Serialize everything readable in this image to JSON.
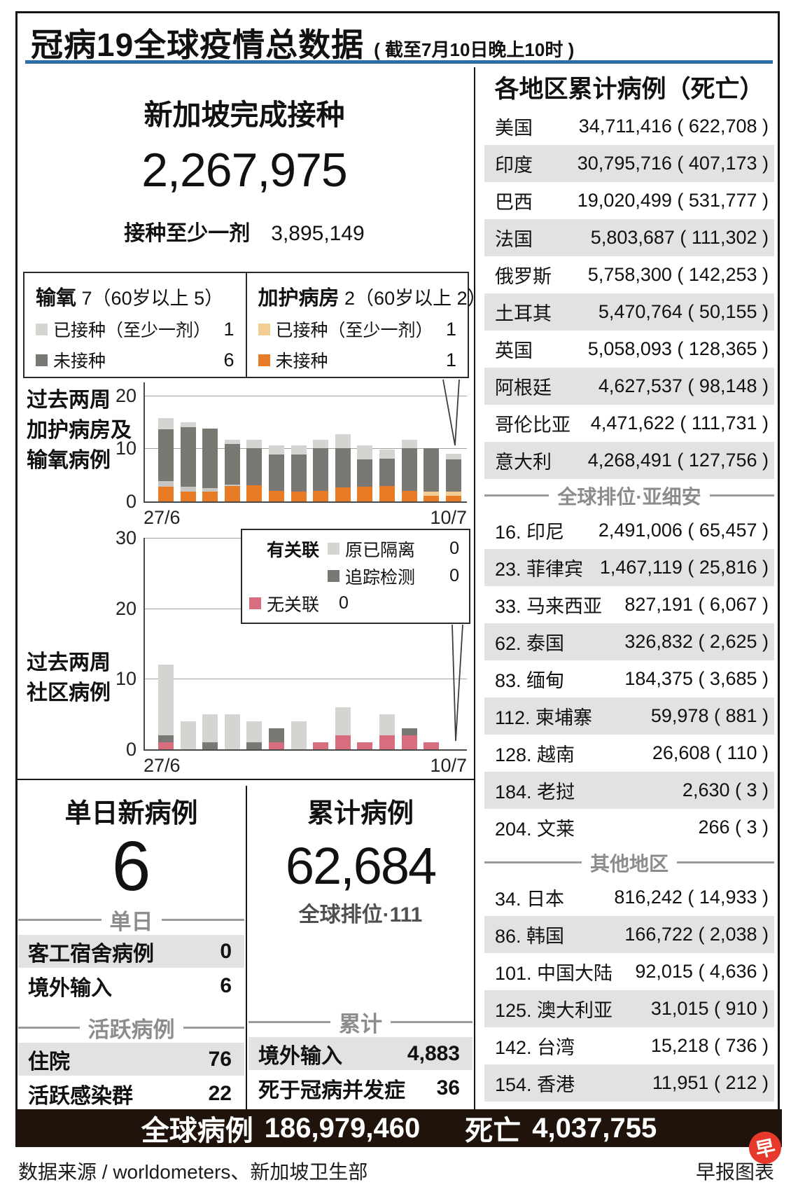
{
  "meta": {
    "title": "冠病19全球疫情总数据",
    "subtitle": "( 截至7月10日晚上10时 )"
  },
  "colors": {
    "accent_blue": "#2f6ea5",
    "orange": "#e87b25",
    "light_orange": "#f3cd92",
    "dark_gray": "#7a7872",
    "mid_gray": "#c7c6c2",
    "light_gray": "#d5d4d0",
    "pink": "#d76d7d",
    "row_shade": "#e2e2e2",
    "footer_bg": "#20130b",
    "logo_red": "#e6392c"
  },
  "vaccination": {
    "title": "新加坡完成接种",
    "completed": "2,267,975",
    "at_least_one_label": "接种至少一剂",
    "at_least_one_value": "3,895,149"
  },
  "chart_data": [
    {
      "type": "bar",
      "stacked": true,
      "title": "过去两周加护病房及输氧病例",
      "title_lines": [
        "过去两周",
        "加护病房及",
        "输氧病例"
      ],
      "x_tick_labels": [
        "27/6",
        "10/7"
      ],
      "yticks": [
        0,
        10,
        20
      ],
      "ylim": [
        0,
        22.5
      ],
      "grid": true,
      "legend": {
        "groups": [
          {
            "title": "输氧",
            "count_text": "7（60岁以上 5）",
            "items": [
              {
                "label": "已接种（至少一剂）",
                "value": "1",
                "color_key": "light_gray"
              },
              {
                "label": "未接种",
                "value": "6",
                "color_key": "dark_gray"
              }
            ]
          },
          {
            "title": "加护病房",
            "count_text": "2（60岁以上 2）",
            "items": [
              {
                "label": "已接种（至少一剂）",
                "value": "1",
                "color_key": "light_orange"
              },
              {
                "label": "未接种",
                "value": "1",
                "color_key": "orange"
              }
            ]
          }
        ]
      },
      "segment_order": "bottom-to-top, one entry per day 27/6-10/7",
      "bars": [
        [
          [
            "orange",
            2.8
          ],
          [
            "mid_gray",
            1.1
          ],
          [
            "dark_gray",
            9.8
          ],
          [
            "light_gray",
            2.0
          ]
        ],
        [
          [
            "orange",
            1.8
          ],
          [
            "mid_gray",
            1.0
          ],
          [
            "dark_gray",
            11.2
          ],
          [
            "light_gray",
            0.9
          ]
        ],
        [
          [
            "orange",
            1.8
          ],
          [
            "mid_gray",
            0.7
          ],
          [
            "dark_gray",
            11.3
          ]
        ],
        [
          [
            "orange",
            2.9
          ],
          [
            "mid_gray",
            0.3
          ],
          [
            "dark_gray",
            7.6
          ],
          [
            "light_gray",
            0.9
          ]
        ],
        [
          [
            "orange",
            3.0
          ],
          [
            "dark_gray",
            7.0
          ],
          [
            "light_gray",
            1.6
          ]
        ],
        [
          [
            "orange",
            2.0
          ],
          [
            "dark_gray",
            6.9
          ],
          [
            "light_gray",
            1.7
          ]
        ],
        [
          [
            "orange",
            1.9
          ],
          [
            "dark_gray",
            7.0
          ],
          [
            "light_gray",
            1.7
          ]
        ],
        [
          [
            "orange",
            2.0
          ],
          [
            "dark_gray",
            8.0
          ],
          [
            "light_gray",
            1.7
          ]
        ],
        [
          [
            "orange",
            2.7
          ],
          [
            "dark_gray",
            7.3
          ],
          [
            "light_gray",
            2.7
          ]
        ],
        [
          [
            "orange",
            2.8
          ],
          [
            "dark_gray",
            5.2
          ],
          [
            "light_gray",
            2.6
          ]
        ],
        [
          [
            "orange",
            2.9
          ],
          [
            "dark_gray",
            5.2
          ],
          [
            "light_gray",
            1.7
          ]
        ],
        [
          [
            "orange",
            2.0
          ],
          [
            "dark_gray",
            8.0
          ],
          [
            "light_gray",
            1.6
          ]
        ],
        [
          [
            "orange",
            1.0
          ],
          [
            "light_orange",
            0.8
          ],
          [
            "dark_gray",
            8.2
          ]
        ],
        [
          [
            "orange",
            1.0
          ],
          [
            "light_orange",
            0.8
          ],
          [
            "dark_gray",
            6.2
          ],
          [
            "light_gray",
            1.0
          ]
        ]
      ]
    },
    {
      "type": "bar",
      "stacked": true,
      "title": "过去两周社区病例",
      "title_lines": [
        "过去两周",
        "社区病例"
      ],
      "x_tick_labels": [
        "27/6",
        "10/7"
      ],
      "yticks": [
        0,
        10,
        20,
        30
      ],
      "ylim": [
        0,
        30
      ],
      "grid": true,
      "legend": {
        "linked_label": "有关联",
        "items": [
          {
            "label": "原已隔离",
            "value": "0",
            "color_key": "light_gray"
          },
          {
            "label": "追踪检测",
            "value": "0",
            "color_key": "dark_gray"
          }
        ],
        "unlinked": {
          "label": "无关联",
          "value": "0",
          "color_key": "pink"
        }
      },
      "segment_order": "bottom-to-top, one entry per day 27/6-10/7",
      "bars": [
        [
          [
            "pink",
            1
          ],
          [
            "dark_gray",
            1
          ],
          [
            "light_gray",
            10
          ]
        ],
        [
          [
            "light_gray",
            4
          ]
        ],
        [
          [
            "dark_gray",
            1
          ],
          [
            "light_gray",
            4
          ]
        ],
        [
          [
            "light_gray",
            5
          ]
        ],
        [
          [
            "dark_gray",
            1
          ],
          [
            "light_gray",
            3
          ]
        ],
        [
          [
            "pink",
            1
          ],
          [
            "dark_gray",
            2
          ]
        ],
        [
          [
            "light_gray",
            4
          ]
        ],
        [
          [
            "pink",
            1
          ]
        ],
        [
          [
            "pink",
            2
          ],
          [
            "light_gray",
            4
          ]
        ],
        [
          [
            "pink",
            1
          ]
        ],
        [
          [
            "pink",
            2
          ],
          [
            "light_gray",
            3
          ]
        ],
        [
          [
            "pink",
            2
          ],
          [
            "dark_gray",
            1
          ]
        ],
        [
          [
            "pink",
            1
          ]
        ],
        []
      ]
    }
  ],
  "regions": {
    "title": "各地区累计病例（死亡）",
    "sections": [
      {
        "header": null,
        "rows": [
          {
            "name": "美国",
            "value": "34,711,416 ( 622,708 )",
            "shaded": false
          },
          {
            "name": "印度",
            "value": "30,795,716 ( 407,173 )",
            "shaded": true
          },
          {
            "name": "巴西",
            "value": "19,020,499 ( 531,777 )",
            "shaded": false
          },
          {
            "name": "法国",
            "value": "5,803,687 ( 111,302 )",
            "shaded": true
          },
          {
            "name": "俄罗斯",
            "value": "5,758,300 ( 142,253 )",
            "shaded": false
          },
          {
            "name": "土耳其",
            "value": "5,470,764 ( 50,155 )",
            "shaded": true
          },
          {
            "name": "英国",
            "value": "5,058,093 ( 128,365 )",
            "shaded": false
          },
          {
            "name": "阿根廷",
            "value": "4,627,537 ( 98,148 )",
            "shaded": true
          },
          {
            "name": "哥伦比亚",
            "value": "4,471,622 ( 111,731 )",
            "shaded": false
          },
          {
            "name": "意大利",
            "value": "4,268,491 ( 127,756 )",
            "shaded": true
          }
        ]
      },
      {
        "header": "全球排位·亚细安",
        "rows": [
          {
            "name": "16. 印尼",
            "value": "2,491,006 ( 65,457 )",
            "shaded": false
          },
          {
            "name": "23. 菲律宾",
            "value": "1,467,119 ( 25,816 )",
            "shaded": true
          },
          {
            "name": "33. 马来西亚",
            "value": "827,191 ( 6,067 )",
            "shaded": false
          },
          {
            "name": "62. 泰国",
            "value": "326,832 ( 2,625 )",
            "shaded": true
          },
          {
            "name": "83. 缅甸",
            "value": "184,375 ( 3,685 )",
            "shaded": false
          },
          {
            "name": "112. 柬埔寨",
            "value": "59,978 ( 881 )",
            "shaded": true
          },
          {
            "name": "128. 越南",
            "value": "26,608 ( 110 )",
            "shaded": false
          },
          {
            "name": "184. 老挝",
            "value": "2,630 ( 3 )",
            "shaded": true
          },
          {
            "name": "204. 文莱",
            "value": "266 ( 3 )",
            "shaded": false
          }
        ]
      },
      {
        "header": "其他地区",
        "rows": [
          {
            "name": "34. 日本",
            "value": "816,242 ( 14,933 )",
            "shaded": false
          },
          {
            "name": "86. 韩国",
            "value": "166,722 ( 2,038 )",
            "shaded": true
          },
          {
            "name": "101. 中国大陆",
            "value": "92,015 ( 4,636 )",
            "shaded": false
          },
          {
            "name": "125. 澳大利亚",
            "value": "31,015 ( 910 )",
            "shaded": true
          },
          {
            "name": "142. 台湾",
            "value": "15,218 ( 736 )",
            "shaded": false
          },
          {
            "name": "154. 香港",
            "value": "11,951 ( 212 )",
            "shaded": true
          }
        ]
      }
    ]
  },
  "daily": {
    "title": "单日新病例",
    "value": "6",
    "sections": [
      {
        "header": "单日",
        "rows": [
          {
            "label": "客工宿舍病例",
            "value": "0",
            "shaded": true
          },
          {
            "label": "境外输入",
            "value": "6",
            "shaded": false
          }
        ]
      },
      {
        "header": "活跃病例",
        "rows": [
          {
            "label": "住院",
            "value": "76",
            "shaded": true
          },
          {
            "label": "活跃感染群",
            "value": "22",
            "shaded": false
          }
        ]
      }
    ]
  },
  "cumulative": {
    "title": "累计病例",
    "value": "62,684",
    "rank": "全球排位·111",
    "sections": [
      {
        "header": "累计",
        "rows": [
          {
            "label": "境外输入",
            "value": "4,883",
            "shaded": true
          },
          {
            "label": "死于冠病并发症",
            "value": "36",
            "shaded": false
          }
        ]
      }
    ]
  },
  "footer": {
    "global_label": "全球病例",
    "global_value": "186,979,460",
    "deaths_label": "死亡",
    "deaths_value": "4,037,755",
    "source": "数据来源 / worldometers、新加坡卫生部",
    "credit": "早报图表",
    "logo_glyph": "早"
  }
}
